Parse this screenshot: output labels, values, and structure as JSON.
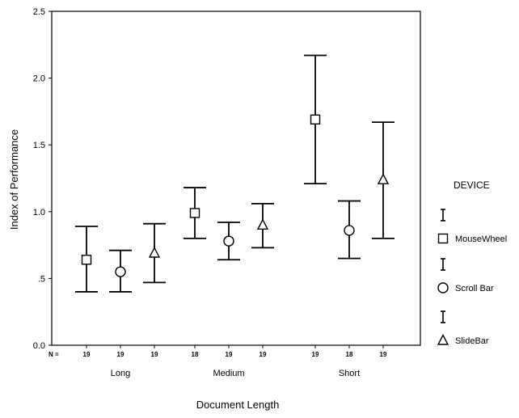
{
  "chart_data": {
    "type": "errorbar",
    "xlabel": "Document Length",
    "ylabel": "Index of Performance",
    "ylim": [
      0,
      2.5
    ],
    "yticks": [
      {
        "value": 0.0,
        "label": "0.0"
      },
      {
        "value": 0.5,
        "label": ".5"
      },
      {
        "value": 1.0,
        "label": "1.0"
      },
      {
        "value": 1.5,
        "label": "1.5"
      },
      {
        "value": 2.0,
        "label": "2.0"
      },
      {
        "value": 2.5,
        "label": "2.5"
      }
    ],
    "n_label": "N =",
    "categories": [
      "Long",
      "Medium",
      "Short"
    ],
    "legend": {
      "title": "DEVICE",
      "position": "right"
    },
    "series": [
      {
        "name": "MouseWheel",
        "marker": "square",
        "n": [
          "19",
          "18",
          "19"
        ],
        "mean": [
          0.64,
          0.99,
          1.69
        ],
        "lower": [
          0.4,
          0.8,
          1.21
        ],
        "upper": [
          0.89,
          1.18,
          2.17
        ]
      },
      {
        "name": "Scroll Bar",
        "marker": "circle",
        "n": [
          "19",
          "19",
          "18"
        ],
        "mean": [
          0.55,
          0.78,
          0.86
        ],
        "lower": [
          0.4,
          0.64,
          0.65
        ],
        "upper": [
          0.71,
          0.92,
          1.08
        ]
      },
      {
        "name": "SlideBar",
        "marker": "triangle",
        "n": [
          "19",
          "19",
          "19"
        ],
        "mean": [
          0.69,
          0.9,
          1.24
        ],
        "lower": [
          0.47,
          0.73,
          0.8
        ],
        "upper": [
          0.91,
          1.06,
          1.67
        ]
      }
    ]
  }
}
